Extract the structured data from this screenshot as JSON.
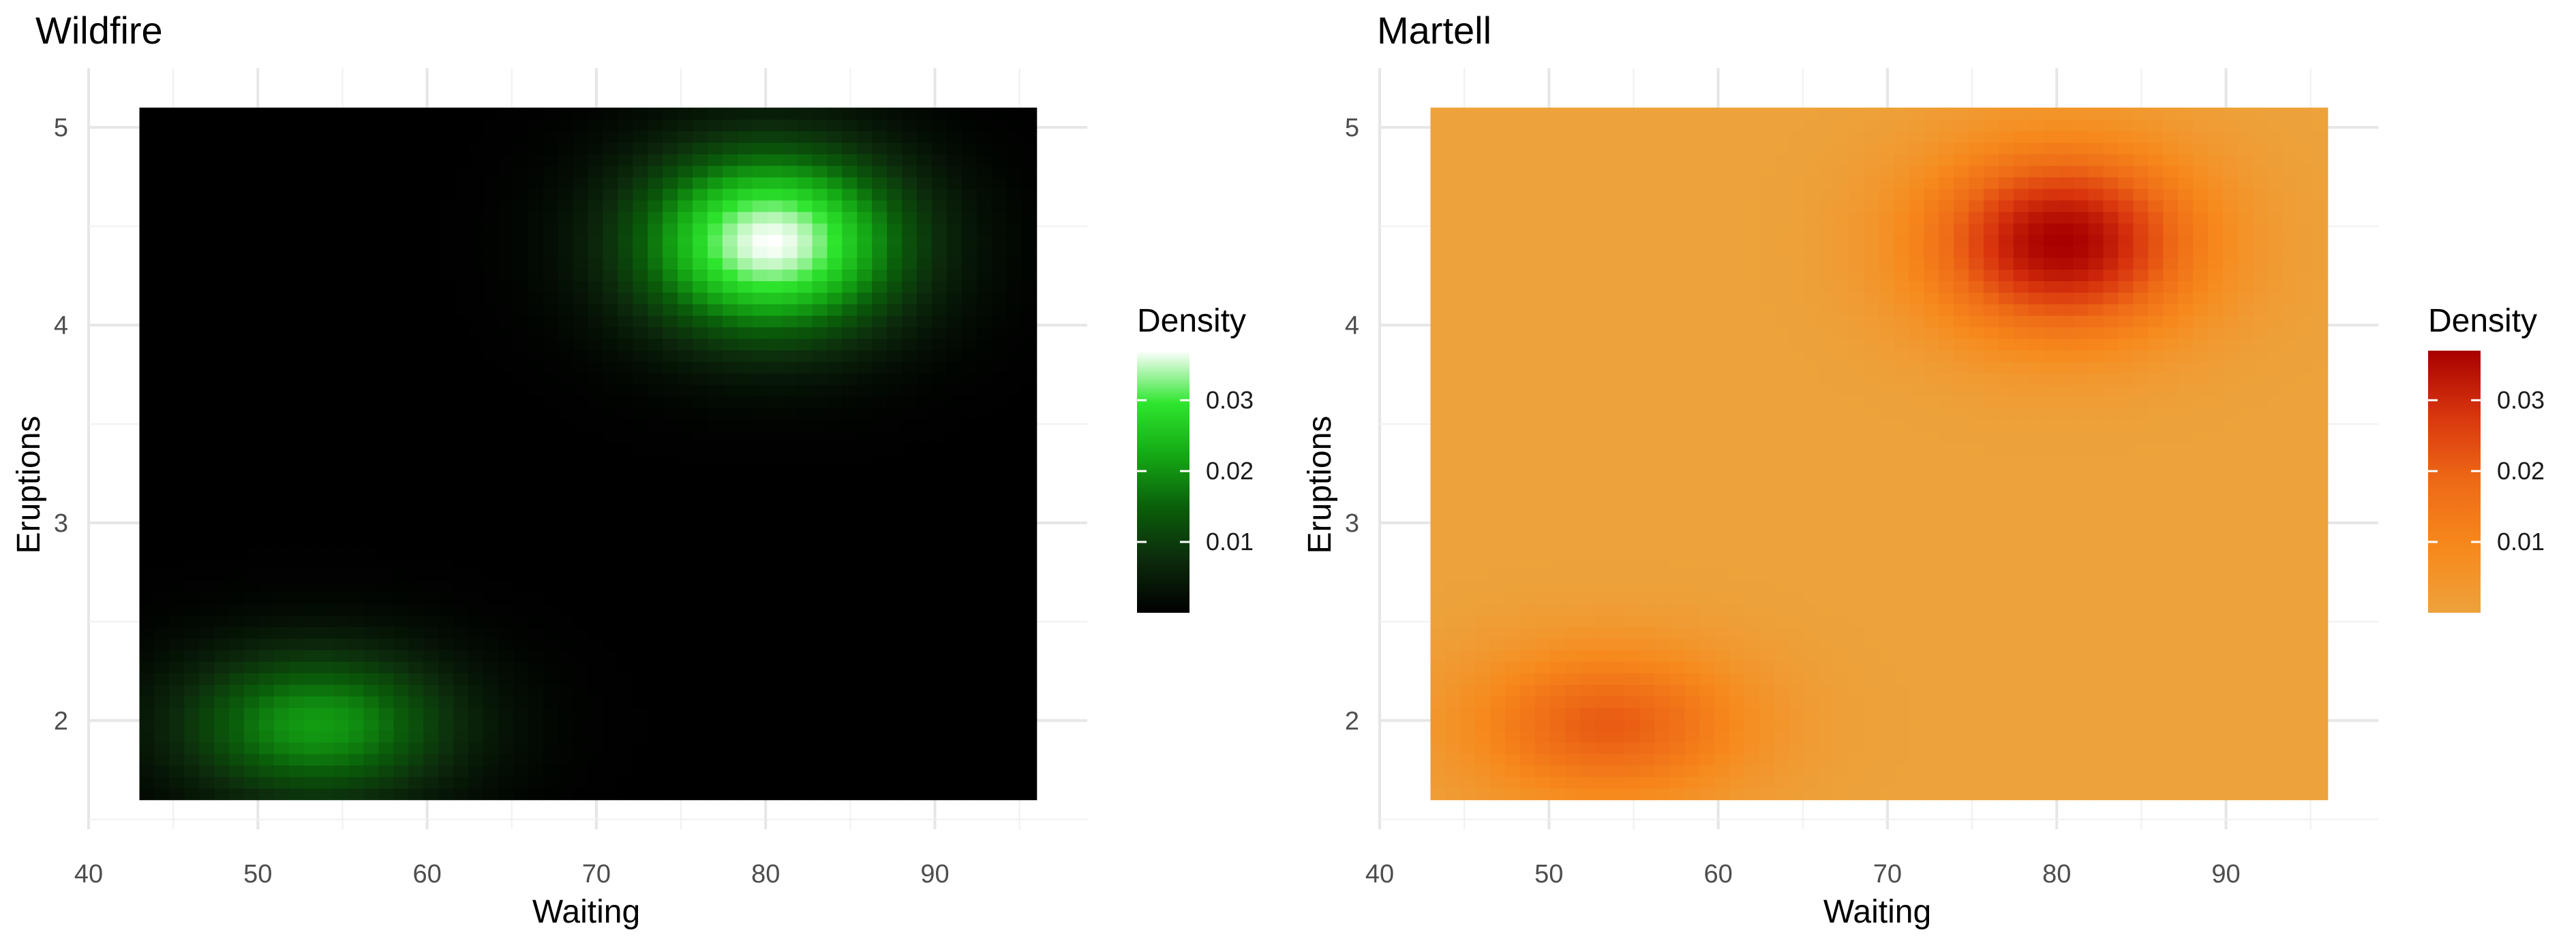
{
  "chart_data": [
    {
      "type": "heatmap",
      "title": "Wildfire",
      "xlabel": "Waiting",
      "ylabel": "Eruptions",
      "xlim": [
        40,
        99
      ],
      "ylim": [
        1.45,
        5.3
      ],
      "x_ticks": [
        40,
        50,
        60,
        70,
        80,
        90
      ],
      "y_ticks": [
        2,
        3,
        4,
        5
      ],
      "x_range": [
        43,
        96
      ],
      "y_range": [
        1.6,
        5.1
      ],
      "grid": true,
      "legend": {
        "title": "Density",
        "placement": "right",
        "ticks": [
          0.01,
          0.02,
          0.03
        ],
        "range": [
          0.0,
          0.037
        ]
      },
      "palette": [
        "#000000",
        "#0c2a0c",
        "#0a5e0a",
        "#14a814",
        "#2ee62e",
        "#ffffff"
      ],
      "density_peaks": [
        {
          "x": 80.3,
          "y": 4.42,
          "value": 0.037
        },
        {
          "x": 53.5,
          "y": 1.98,
          "value": 0.021
        }
      ]
    },
    {
      "type": "heatmap",
      "title": "Martell",
      "xlabel": "Waiting",
      "ylabel": "Eruptions",
      "xlim": [
        40,
        99
      ],
      "ylim": [
        1.45,
        5.3
      ],
      "x_ticks": [
        40,
        50,
        60,
        70,
        80,
        90
      ],
      "y_ticks": [
        2,
        3,
        4,
        5
      ],
      "x_range": [
        43,
        96
      ],
      "y_range": [
        1.6,
        5.1
      ],
      "grid": true,
      "legend": {
        "title": "Density",
        "placement": "right",
        "ticks": [
          0.01,
          0.02,
          0.03
        ],
        "range": [
          0.0,
          0.037
        ]
      },
      "palette": [
        "#eda23b",
        "#f7891c",
        "#ee6a16",
        "#d9360e",
        "#a80000"
      ],
      "density_peaks": [
        {
          "x": 80.3,
          "y": 4.42,
          "value": 0.037
        },
        {
          "x": 53.5,
          "y": 1.98,
          "value": 0.021
        }
      ]
    }
  ]
}
